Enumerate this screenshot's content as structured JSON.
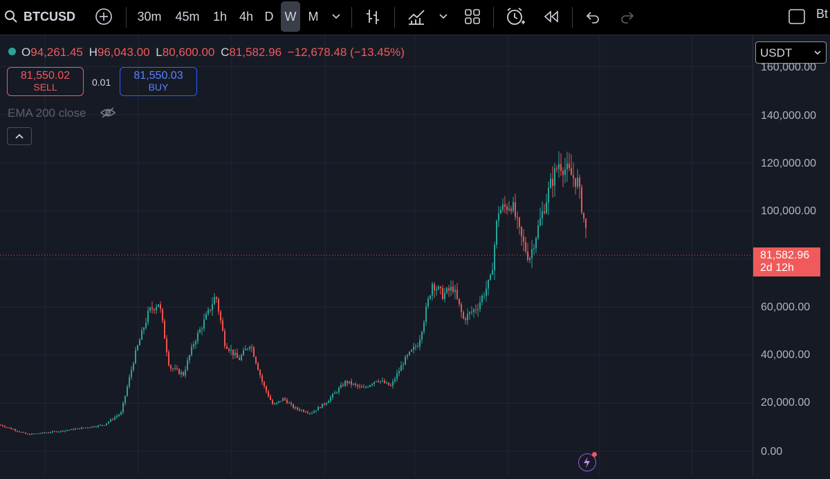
{
  "toolbar": {
    "symbol": "BTCUSD",
    "intervals": [
      "30m",
      "45m",
      "1h",
      "4h",
      "D",
      "W",
      "M"
    ],
    "active_interval": "W",
    "right_label": "Bt"
  },
  "legend": {
    "open": "94,261.45",
    "high": "96,043.00",
    "low": "80,600.00",
    "close": "81,582.96",
    "change": "−12,678.48 (−13.45%)"
  },
  "trade": {
    "sell_price": "81,550.02",
    "sell_label": "SELL",
    "spread": "0.01",
    "buy_price": "81,550.03",
    "buy_label": "BUY"
  },
  "indicator": {
    "label": "EMA 200 close"
  },
  "currency": "USDT",
  "price_tag": {
    "price": "81,582.96",
    "countdown": "2d 12h"
  },
  "chart_data": {
    "type": "candlestick",
    "y_ticks": [
      "160,000.00",
      "140,000.00",
      "120,000.00",
      "100,000.00",
      "60,000.00",
      "40,000.00",
      "20,000.00",
      "0.00"
    ],
    "ylim": [
      0,
      160000
    ],
    "last_price": 81582.96,
    "colors": {
      "up": "#26a69a",
      "down": "#ef5350",
      "bg": "#161a25",
      "grid": "#232735"
    },
    "trend": [
      [
        0,
        11000
      ],
      [
        40,
        7000
      ],
      [
        90,
        8500
      ],
      [
        150,
        11000
      ],
      [
        175,
        16000
      ],
      [
        195,
        40000
      ],
      [
        215,
        58000
      ],
      [
        230,
        62000
      ],
      [
        245,
        35000
      ],
      [
        265,
        32000
      ],
      [
        280,
        45000
      ],
      [
        300,
        57000
      ],
      [
        312,
        65000
      ],
      [
        325,
        45000
      ],
      [
        345,
        38000
      ],
      [
        362,
        45000
      ],
      [
        380,
        28000
      ],
      [
        395,
        19000
      ],
      [
        410,
        22000
      ],
      [
        425,
        18000
      ],
      [
        450,
        16000
      ],
      [
        470,
        20000
      ],
      [
        500,
        29000
      ],
      [
        525,
        26000
      ],
      [
        545,
        30000
      ],
      [
        565,
        27000
      ],
      [
        585,
        38000
      ],
      [
        605,
        45000
      ],
      [
        625,
        70000
      ],
      [
        640,
        65000
      ],
      [
        655,
        68000
      ],
      [
        670,
        55000
      ],
      [
        690,
        60000
      ],
      [
        710,
        72000
      ],
      [
        720,
        100000
      ],
      [
        740,
        103000
      ],
      [
        752,
        90000
      ],
      [
        765,
        80000
      ],
      [
        780,
        95000
      ],
      [
        795,
        110000
      ],
      [
        808,
        120000
      ],
      [
        822,
        116000
      ],
      [
        835,
        112000
      ],
      [
        848,
        90000
      ],
      [
        851,
        81583
      ]
    ]
  }
}
